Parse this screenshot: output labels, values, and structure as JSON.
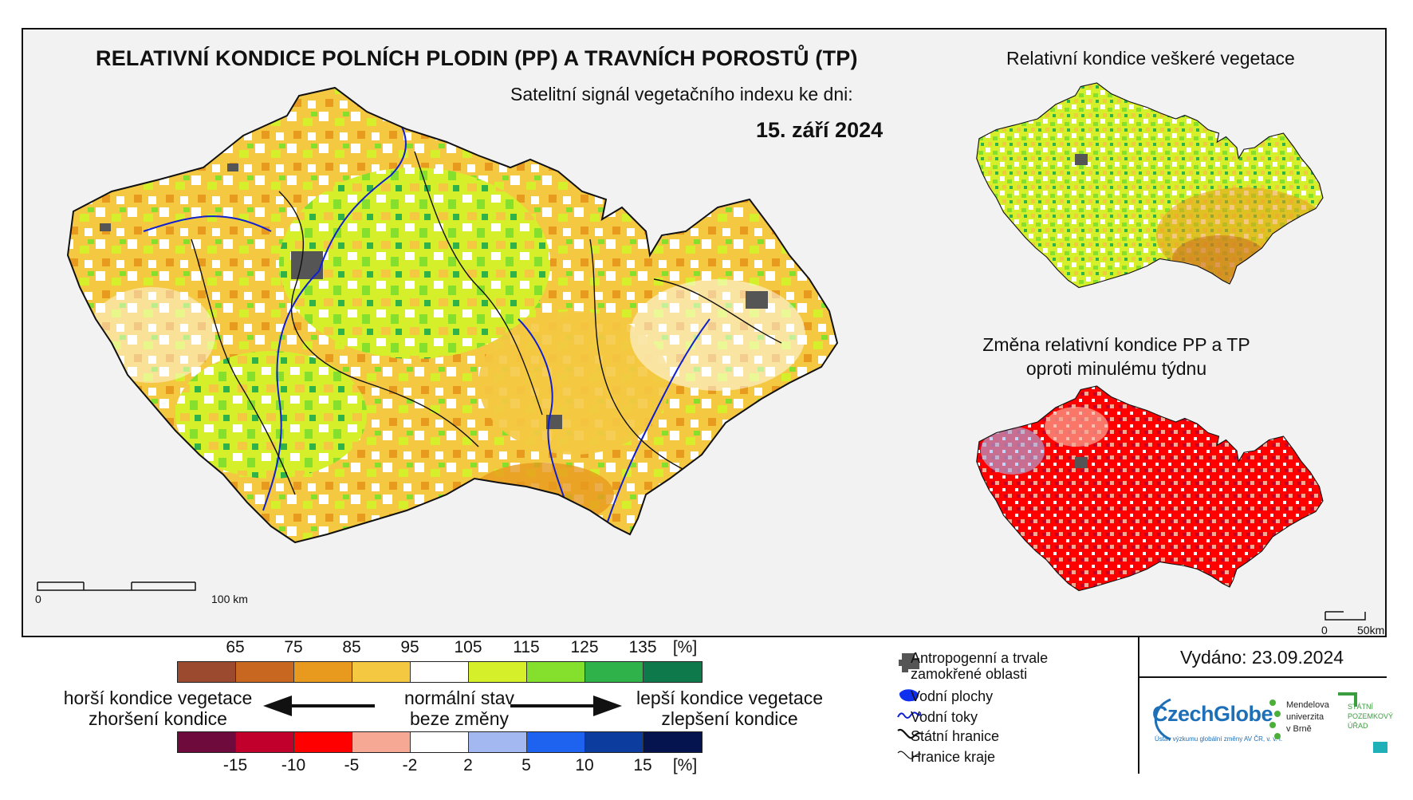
{
  "header": {
    "title": "RELATIVNÍ KONDICE POLNÍCH PLODIN (PP) A TRAVNÍCH POROSTŮ (TP)",
    "subtitle": "Satelitní signál vegetačního indexu ke dni:",
    "date": "15. září 2024"
  },
  "right_maps": {
    "top_title": "Relativní kondice veškeré vegetace",
    "bottom_title_line1": "Změna relativní kondice PP a TP",
    "bottom_title_line2": "oproti minulému týdnu"
  },
  "scale_main": {
    "start": "0",
    "end": "100 km"
  },
  "scale_small": {
    "start": "0",
    "end": "50km"
  },
  "legend": {
    "condition_ticks": [
      "65",
      "75",
      "85",
      "95",
      "105",
      "115",
      "125",
      "135",
      "[%]"
    ],
    "condition_colors": [
      "#9b4a2f",
      "#c8671f",
      "#e79a1e",
      "#f5c842",
      "#ffffff",
      "#d5f02b",
      "#84e02c",
      "#2fb24a",
      "#0e7a4b"
    ],
    "change_ticks": [
      "-15",
      "-10",
      "-5",
      "-2",
      "2",
      "5",
      "10",
      "15",
      "[%]"
    ],
    "change_colors": [
      "#6e0b3c",
      "#c2002c",
      "#ff0000",
      "#f7a894",
      "#ffffff",
      "#a3b8f0",
      "#1e63f0",
      "#0b3c9e",
      "#05134f"
    ],
    "worse_line1": "horší kondice vegetace",
    "worse_line2": "zhoršení kondice",
    "normal_line1": "normální stav",
    "normal_line2": "beze změny",
    "better_line1": "lepší kondice vegetace",
    "better_line2": "zlepšení kondice"
  },
  "key": {
    "urban_line1": "Antropogenní a trvale",
    "urban_line2": "zamokřené oblasti",
    "water_bodies": "Vodní plochy",
    "rivers": "Vodní toky",
    "state_border": "Státní hranice",
    "region_border": "Hranice kraje"
  },
  "issued": "Vydáno: 23.09.2024",
  "logos": {
    "czechglobe": "CzechGlobe",
    "czechglobe_sub": "Ústav výzkumu globální změny AV ČR, v. v. i.",
    "mendel_line1": "Mendelova",
    "mendel_line2": "univerzita",
    "mendel_line3": "v Brně",
    "spu_line1": "STÁTNÍ",
    "spu_line2": "POZEMKOVÝ",
    "spu_line3": "ÚŘAD"
  }
}
